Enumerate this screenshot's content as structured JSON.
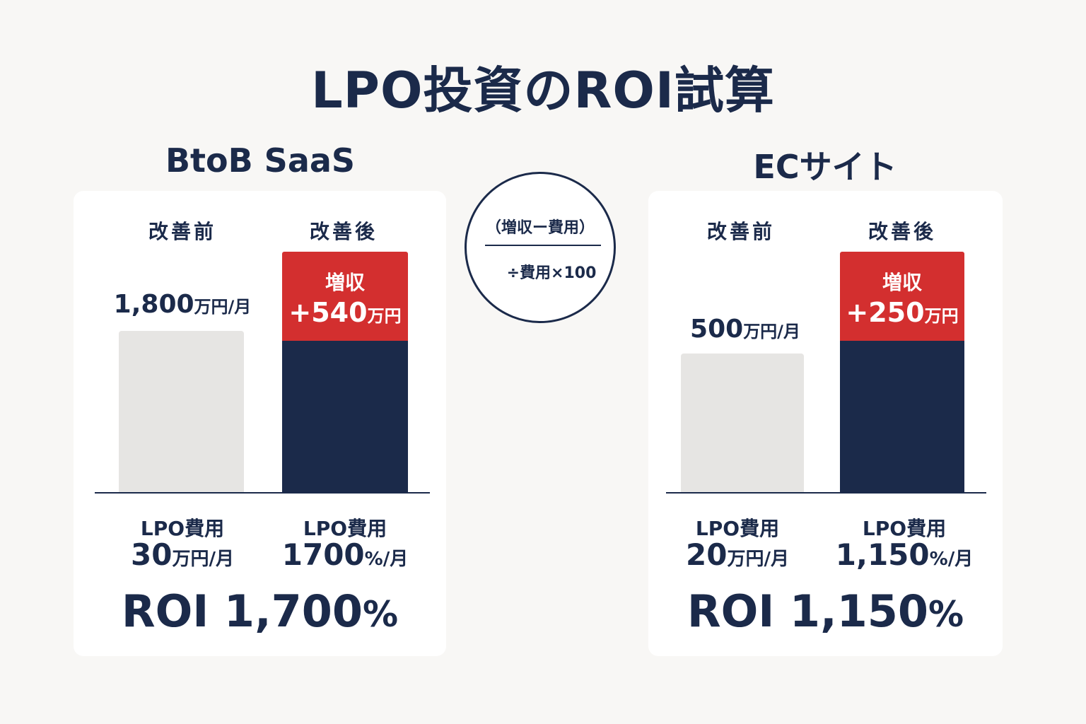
{
  "title": "LPO投資のROI試算",
  "formula": {
    "top": "（増収ー費用）",
    "bottom": "÷費用×100"
  },
  "colors": {
    "navy": "#1b2a4a",
    "red": "#d32f2f",
    "gray": "#e6e5e3"
  },
  "chart_data": [
    {
      "type": "bar",
      "title": "BtoB SaaS",
      "categories": [
        "改善前",
        "改善後"
      ],
      "before_value": 1800,
      "after_base_value": 1800,
      "gain_value": 540,
      "unit": "万円/月",
      "before_label": {
        "value": "1,800",
        "unit": "万円/月"
      },
      "gain_label": {
        "title": "増収",
        "value": "+540",
        "unit": "万円"
      },
      "costs": [
        {
          "caption": "LPO費用",
          "value": "30",
          "unit": "万円/月"
        },
        {
          "caption": "LPO費用",
          "value": "1700",
          "unit": "%/月"
        }
      ],
      "roi": {
        "label": "ROI 1,700",
        "pct": "%"
      }
    },
    {
      "type": "bar",
      "title": "ECサイト",
      "categories": [
        "改善前",
        "改善後"
      ],
      "before_value": 500,
      "after_base_value": 500,
      "gain_value": 250,
      "unit": "万円/月",
      "before_label": {
        "value": "500",
        "unit": "万円/月"
      },
      "gain_label": {
        "title": "増収",
        "value": "+250",
        "unit": "万円"
      },
      "costs": [
        {
          "caption": "LPO費用",
          "value": "20",
          "unit": "万円/月"
        },
        {
          "caption": "LPO費用",
          "value": "1,150",
          "unit": "%/月"
        }
      ],
      "roi": {
        "label": "ROI 1,150",
        "pct": "%"
      }
    }
  ]
}
